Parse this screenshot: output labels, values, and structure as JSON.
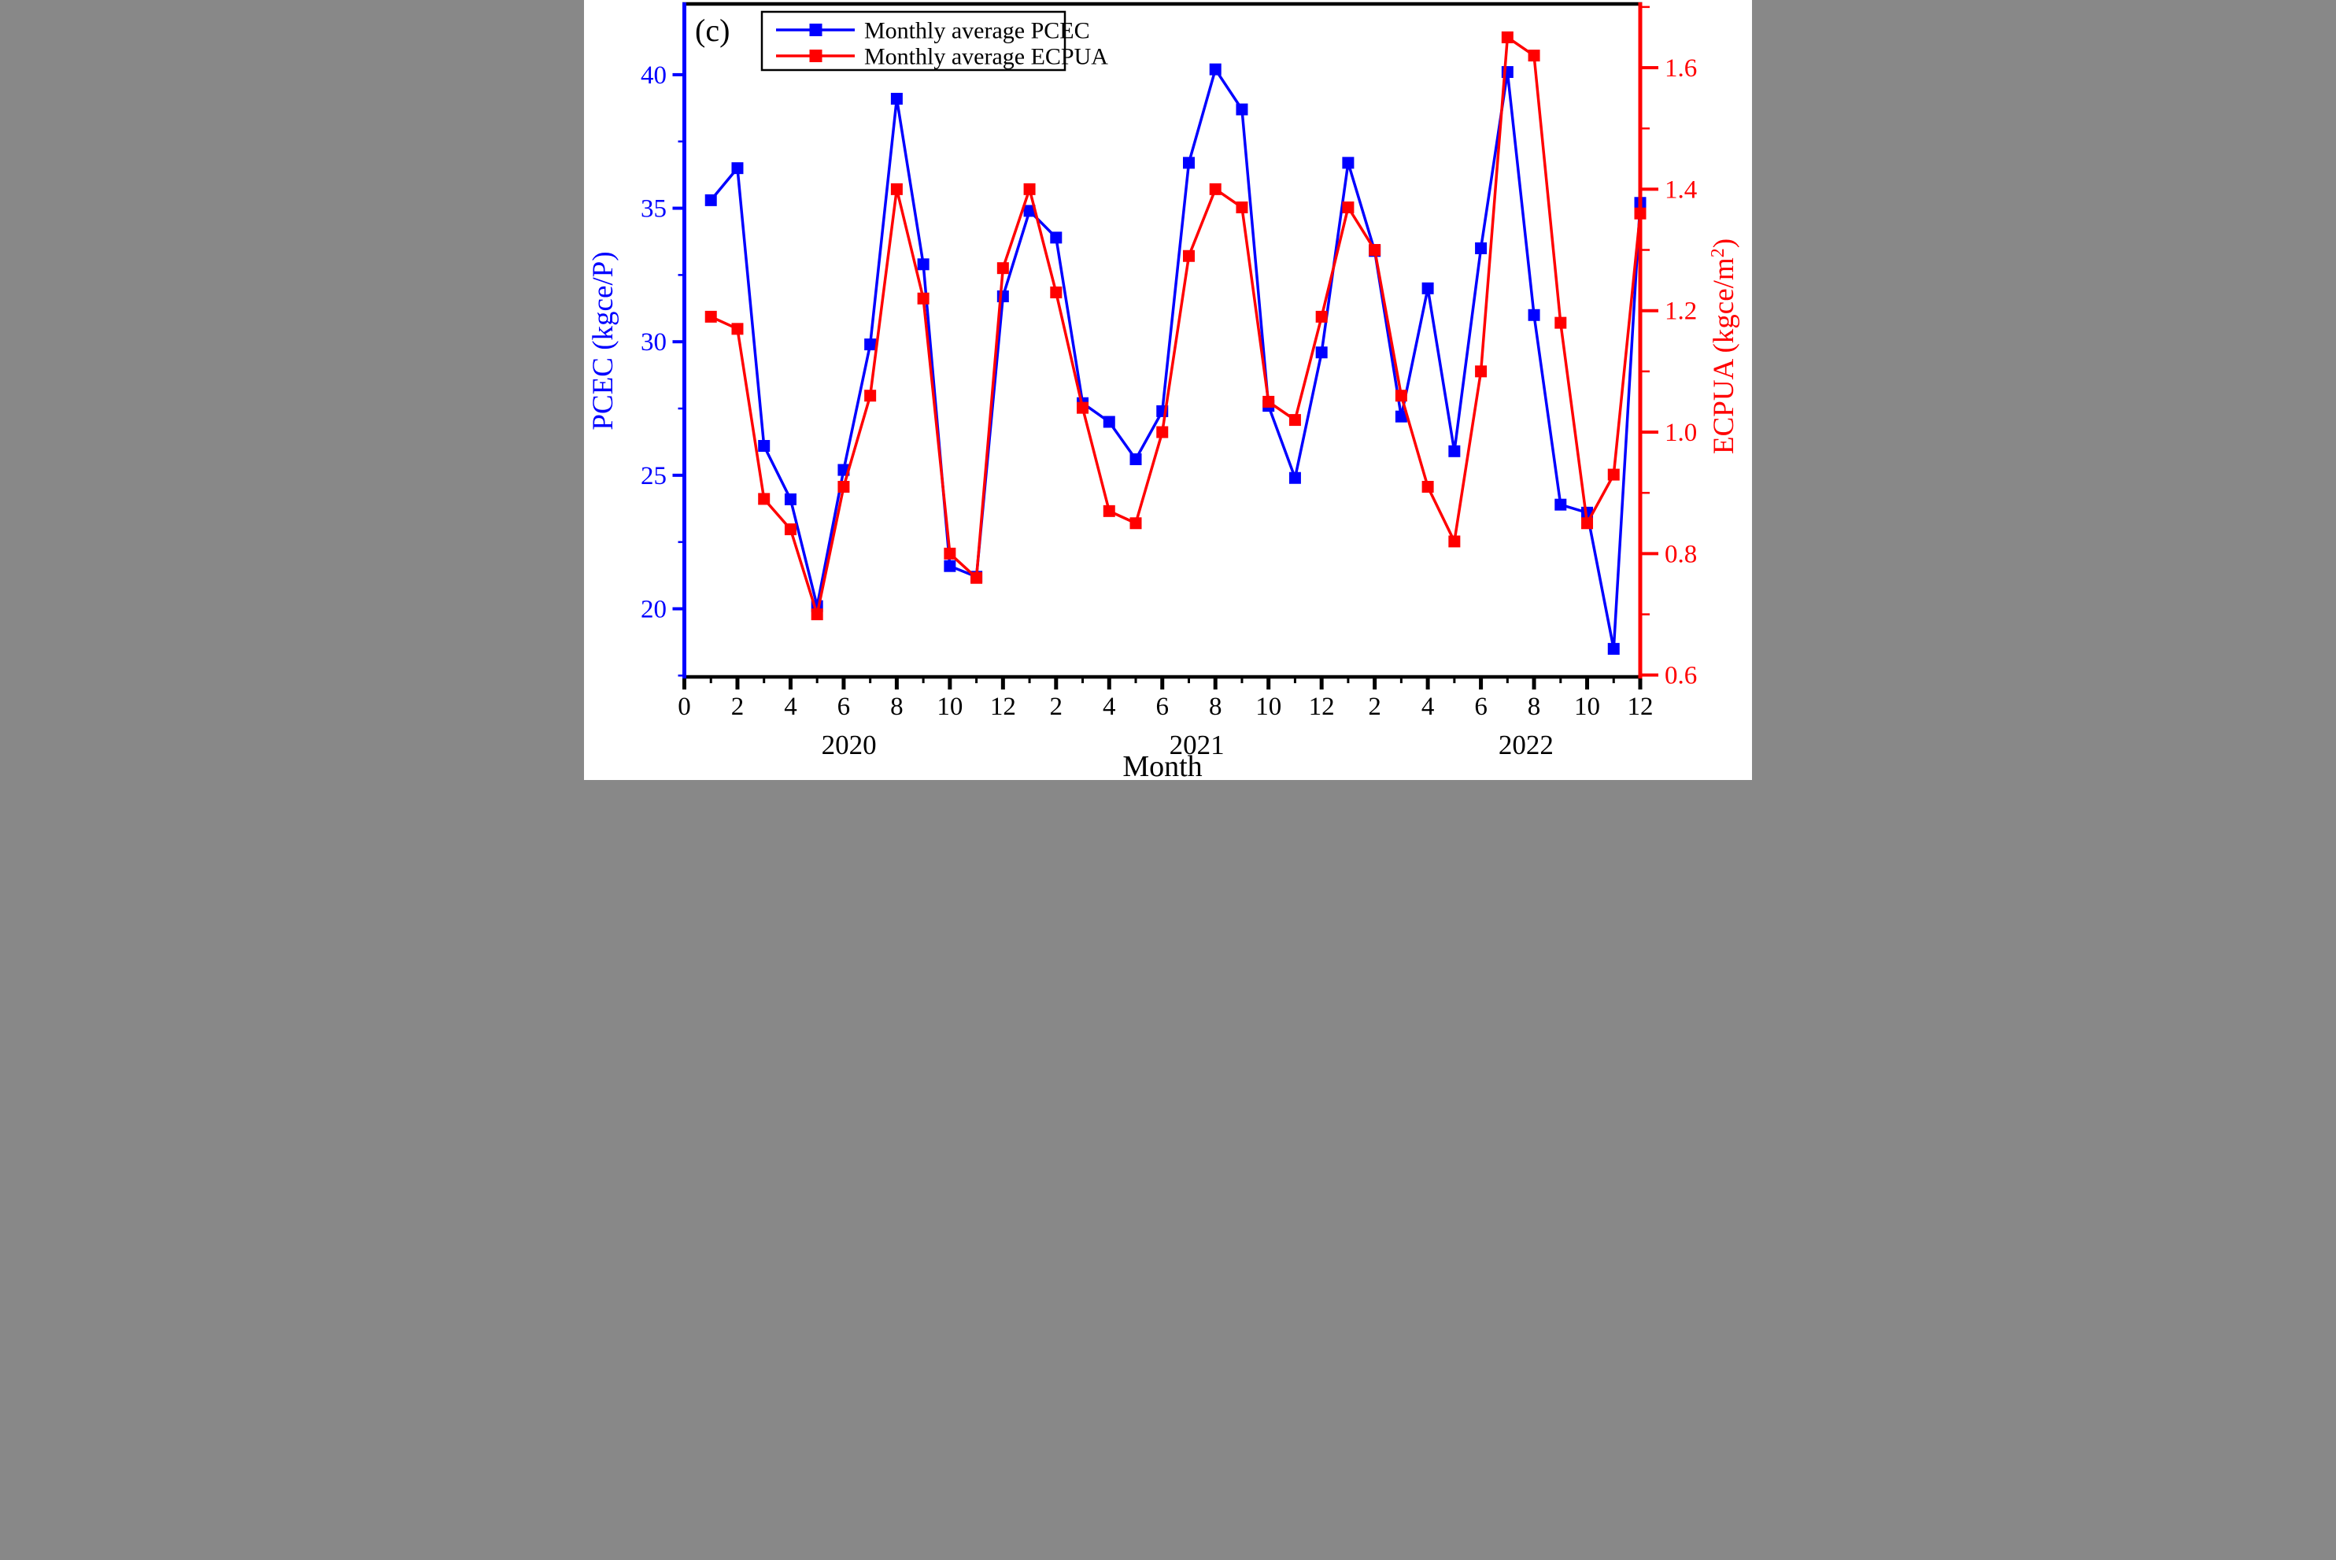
{
  "figure_label": "(c)",
  "colors": {
    "pcec_blue": "#0000ff",
    "ecpua_red": "#ff0000",
    "frame_black": "#000000",
    "background": "#ffffff"
  },
  "legend": {
    "entries": [
      {
        "label": "Monthly average PCEC",
        "color": "#0000ff"
      },
      {
        "label": "Monthly average ECPUA",
        "color": "#ff0000"
      }
    ]
  },
  "axes": {
    "x": {
      "title": "Month",
      "tick_labels": [
        "0",
        "2",
        "4",
        "6",
        "8",
        "10",
        "12",
        "2",
        "4",
        "6",
        "8",
        "10",
        "12",
        "2",
        "4",
        "6",
        "8",
        "10",
        "12"
      ],
      "years": [
        {
          "label": "2020",
          "month_pos": 6.2
        },
        {
          "label": "2021",
          "month_pos": 19.3
        },
        {
          "label": "2022",
          "month_pos": 31.7
        }
      ]
    },
    "y_left": {
      "label": "PCEC (kgce/P)",
      "color": "#0000ff",
      "major_ticks": [
        40,
        35,
        30,
        25,
        20
      ],
      "tick_labels": [
        "40",
        "35",
        "30",
        "25",
        "20"
      ],
      "minor_ticks": [
        37.5,
        32.5,
        27.5,
        22.5,
        17.5
      ]
    },
    "y_right": {
      "label_prefix": "ECPUA (kgce/m",
      "label_sup": "2",
      "label_suffix": ")",
      "color": "#ff0000",
      "major_ticks": [
        1.6,
        1.4,
        1.2,
        1.0,
        0.8,
        0.6
      ],
      "tick_labels": [
        "1.6",
        "1.4",
        "1.2",
        "1.0",
        "0.8",
        "0.6"
      ],
      "minor_ticks": [
        1.7,
        1.5,
        1.3,
        1.1,
        0.9,
        0.7
      ]
    }
  },
  "chart_data": {
    "type": "line",
    "title": "(c) Monthly average PCEC and ECPUA, 2020-2022",
    "x_unit": "month index within year (1-12), years 2020-2022",
    "xlim_months": [
      0,
      36
    ],
    "ylim_left": [
      17.45,
      42.65
    ],
    "ylim_right": [
      0.597,
      1.705
    ],
    "grid": false,
    "legend_position": "top-left",
    "categories_years": [
      "2020",
      "2021",
      "2022"
    ],
    "series": [
      {
        "name": "Monthly average PCEC",
        "axis": "left",
        "units": "kgce/P",
        "color": "#0000ff",
        "marker": "square",
        "values": [
          35.3,
          36.5,
          26.1,
          24.1,
          20.1,
          25.2,
          29.9,
          39.1,
          32.9,
          21.6,
          21.2,
          31.7,
          34.9,
          33.9,
          27.7,
          27.0,
          25.6,
          27.4,
          36.7,
          40.2,
          38.7,
          27.6,
          24.9,
          29.6,
          36.7,
          33.4,
          27.2,
          32.0,
          25.9,
          33.5,
          40.1,
          31.0,
          23.9,
          23.6,
          18.5,
          35.2
        ]
      },
      {
        "name": "Monthly average ECPUA",
        "axis": "right",
        "units": "kgce/m2",
        "color": "#ff0000",
        "marker": "square",
        "values": [
          1.19,
          1.17,
          0.89,
          0.84,
          0.7,
          0.91,
          1.06,
          1.4,
          1.22,
          0.8,
          0.76,
          1.27,
          1.4,
          1.23,
          1.04,
          0.87,
          0.85,
          1.0,
          1.29,
          1.4,
          1.37,
          1.05,
          1.02,
          1.19,
          1.37,
          1.3,
          1.06,
          0.91,
          0.82,
          1.1,
          1.65,
          1.62,
          1.18,
          0.85,
          0.93,
          1.36
        ]
      }
    ]
  }
}
